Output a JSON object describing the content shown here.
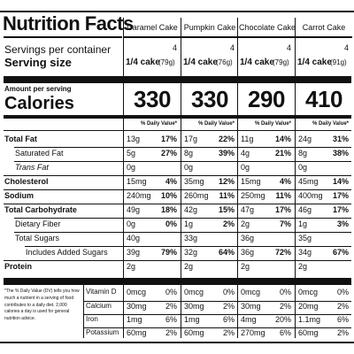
{
  "title": "Nutrition Facts",
  "servings_label": "Servings per container",
  "serving_size_label": "Serving size",
  "amount_per_serving": "Amount per serving",
  "calories_label": "Calories",
  "dv_header": "% Daily Value*",
  "products": [
    {
      "name": "Caramel Cake",
      "servings": "4",
      "serving": "1/4 cake",
      "grams": "(79g)",
      "calories": "330"
    },
    {
      "name": "Pumpkin Cake",
      "servings": "4",
      "serving": "1/4 cake",
      "grams": "(76g)",
      "calories": "330"
    },
    {
      "name": "Chocolate Cake",
      "servings": "4",
      "serving": "1/4 cake",
      "grams": "(79g)",
      "calories": "290"
    },
    {
      "name": "Carrot Cake",
      "servings": "4",
      "serving": "1/4 cake",
      "grams": "(91g)",
      "calories": "410"
    }
  ],
  "nutrients": [
    {
      "label": "Total Fat",
      "cells": [
        [
          "13g",
          "17%"
        ],
        [
          "17g",
          "22%"
        ],
        [
          "11g",
          "14%"
        ],
        [
          "24g",
          "31%"
        ]
      ]
    },
    {
      "label": "Saturated Fat",
      "cells": [
        [
          "5g",
          "27%"
        ],
        [
          "8g",
          "39%"
        ],
        [
          "4g",
          "21%"
        ],
        [
          "8g",
          "38%"
        ]
      ]
    },
    {
      "label": "Trans Fat",
      "cells": [
        [
          "0g",
          ""
        ],
        [
          "0g",
          ""
        ],
        [
          "0g",
          ""
        ],
        [
          "0g",
          ""
        ]
      ]
    },
    {
      "label": "Cholesterol",
      "cells": [
        [
          "15mg",
          "4%"
        ],
        [
          "35mg",
          "12%"
        ],
        [
          "15mg",
          "4%"
        ],
        [
          "45mg",
          "14%"
        ]
      ]
    },
    {
      "label": "Sodium",
      "cells": [
        [
          "240mg",
          "10%"
        ],
        [
          "260mg",
          "11%"
        ],
        [
          "250mg",
          "11%"
        ],
        [
          "400mg",
          "17%"
        ]
      ]
    },
    {
      "label": "Total Carbohydrate",
      "cells": [
        [
          "49g",
          "18%"
        ],
        [
          "42g",
          "15%"
        ],
        [
          "47g",
          "17%"
        ],
        [
          "46g",
          "17%"
        ]
      ]
    },
    {
      "label": "Dietary Fiber",
      "cells": [
        [
          "0g",
          "0%"
        ],
        [
          "1g",
          "2%"
        ],
        [
          "2g",
          "7%"
        ],
        [
          "1g",
          "3%"
        ]
      ]
    },
    {
      "label": "Total Sugars",
      "cells": [
        [
          "40g",
          ""
        ],
        [
          "33g",
          ""
        ],
        [
          "36g",
          ""
        ],
        [
          "35g",
          ""
        ]
      ]
    },
    {
      "label": "Includes Added Sugars",
      "cells": [
        [
          "39g",
          "79%"
        ],
        [
          "32g",
          "64%"
        ],
        [
          "36g",
          "72%"
        ],
        [
          "34g",
          "67%"
        ]
      ]
    },
    {
      "label": "Protein",
      "cells": [
        [
          "2g",
          ""
        ],
        [
          "2g",
          ""
        ],
        [
          "2g",
          ""
        ],
        [
          "2g",
          ""
        ]
      ]
    }
  ],
  "footnote": "*The % Daily Value (DV) tells you how much a nutrient in a serving of food contributes to a daily diet. 2,000 calories a day is used for general nutrition advice.",
  "vitamins": [
    {
      "label": "Vitamin D",
      "cells": [
        [
          "0mcg",
          "0%"
        ],
        [
          "0mcg",
          "0%"
        ],
        [
          "0mcg",
          "0%"
        ],
        [
          "0mcg",
          "0%"
        ]
      ]
    },
    {
      "label": "Calcium",
      "cells": [
        [
          "30mg",
          "2%"
        ],
        [
          "30mg",
          "2%"
        ],
        [
          "30mg",
          "2%"
        ],
        [
          "20mg",
          "2%"
        ]
      ]
    },
    {
      "label": "Iron",
      "cells": [
        [
          "1mg",
          "6%"
        ],
        [
          "1mg",
          "6%"
        ],
        [
          "4mg",
          "20%"
        ],
        [
          "1.1mg",
          "6%"
        ]
      ]
    },
    {
      "label": "Potassium",
      "cells": [
        [
          "60mg",
          "2%"
        ],
        [
          "60mg",
          "2%"
        ],
        [
          "270mg",
          "6%"
        ],
        [
          "60mg",
          "2%"
        ]
      ]
    }
  ]
}
